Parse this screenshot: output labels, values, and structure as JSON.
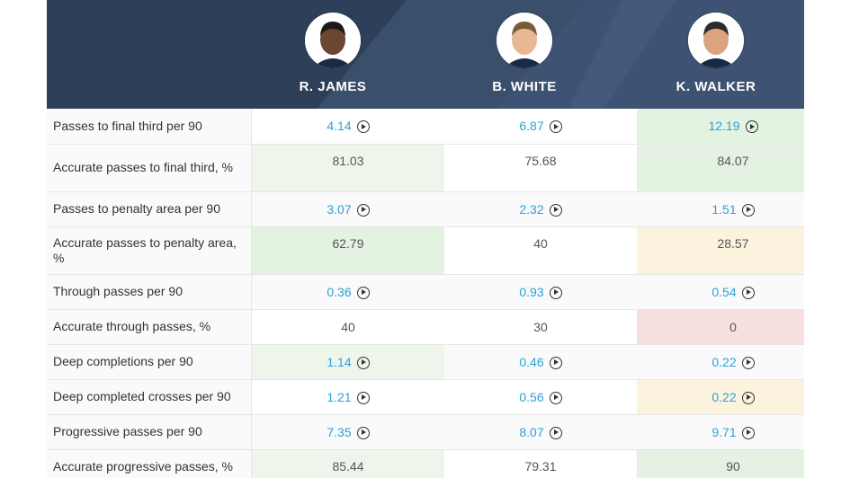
{
  "players": [
    {
      "name": "R. JAMES"
    },
    {
      "name": "B. WHITE"
    },
    {
      "name": "K. WALKER"
    }
  ],
  "rows": [
    {
      "label": "Passes to final third per 90",
      "tall": false,
      "values": [
        {
          "v": "4.14",
          "link": true,
          "bg": "w"
        },
        {
          "v": "6.87",
          "link": true,
          "bg": "w"
        },
        {
          "v": "12.19",
          "link": true,
          "bg": "g"
        }
      ]
    },
    {
      "label": "Accurate passes to final third, %",
      "tall": true,
      "values": [
        {
          "v": "81.03",
          "link": false,
          "bg": "gl"
        },
        {
          "v": "75.68",
          "link": false,
          "bg": "w"
        },
        {
          "v": "84.07",
          "link": false,
          "bg": "g"
        }
      ]
    },
    {
      "label": "Passes to penalty area per 90",
      "tall": false,
      "values": [
        {
          "v": "3.07",
          "link": true,
          "bg": "f"
        },
        {
          "v": "2.32",
          "link": true,
          "bg": "f"
        },
        {
          "v": "1.51",
          "link": true,
          "bg": "f"
        }
      ]
    },
    {
      "label": "Accurate passes to penalty area, %",
      "tall": true,
      "values": [
        {
          "v": "62.79",
          "link": false,
          "bg": "g"
        },
        {
          "v": "40",
          "link": false,
          "bg": "w"
        },
        {
          "v": "28.57",
          "link": false,
          "bg": "y"
        }
      ]
    },
    {
      "label": "Through passes per 90",
      "tall": false,
      "values": [
        {
          "v": "0.36",
          "link": true,
          "bg": "f"
        },
        {
          "v": "0.93",
          "link": true,
          "bg": "f"
        },
        {
          "v": "0.54",
          "link": true,
          "bg": "f"
        }
      ]
    },
    {
      "label": "Accurate through passes, %",
      "tall": false,
      "values": [
        {
          "v": "40",
          "link": false,
          "bg": "w"
        },
        {
          "v": "30",
          "link": false,
          "bg": "w"
        },
        {
          "v": "0",
          "link": false,
          "bg": "r"
        }
      ]
    },
    {
      "label": "Deep completions per 90",
      "tall": false,
      "values": [
        {
          "v": "1.14",
          "link": true,
          "bg": "gl"
        },
        {
          "v": "0.46",
          "link": true,
          "bg": "f"
        },
        {
          "v": "0.22",
          "link": true,
          "bg": "f"
        }
      ]
    },
    {
      "label": "Deep completed crosses per 90",
      "tall": false,
      "values": [
        {
          "v": "1.21",
          "link": true,
          "bg": "w"
        },
        {
          "v": "0.56",
          "link": true,
          "bg": "w"
        },
        {
          "v": "0.22",
          "link": true,
          "bg": "y"
        }
      ]
    },
    {
      "label": "Progressive passes per 90",
      "tall": false,
      "values": [
        {
          "v": "7.35",
          "link": true,
          "bg": "f"
        },
        {
          "v": "8.07",
          "link": true,
          "bg": "f"
        },
        {
          "v": "9.71",
          "link": true,
          "bg": "f"
        }
      ]
    },
    {
      "label": "Accurate progressive passes, %",
      "tall": false,
      "values": [
        {
          "v": "85.44",
          "link": false,
          "bg": "gl"
        },
        {
          "v": "79.31",
          "link": false,
          "bg": "w"
        },
        {
          "v": "90",
          "link": false,
          "bg": "g"
        }
      ]
    }
  ],
  "icons": {
    "play": "play-circle-icon",
    "avatar": "player-photo"
  },
  "colors": {
    "header": "#2e4059",
    "link": "#2e9fd8",
    "green": "#e3f2e1",
    "yellow": "#fcf3de",
    "red": "#f9e0e0"
  }
}
